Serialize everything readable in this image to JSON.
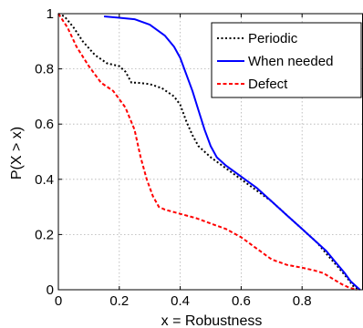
{
  "chart_data": {
    "type": "line",
    "xlabel": "x = Robustness",
    "ylabel": "P(X > x)",
    "xlim": [
      0,
      1
    ],
    "ylim": [
      0,
      1
    ],
    "xticks": [
      0,
      0.2,
      0.4,
      0.6,
      0.8
    ],
    "xtick_labels": [
      "0",
      "0.2",
      "0.4",
      "0.6",
      "0.8"
    ],
    "yticks": [
      0,
      0.2,
      0.4,
      0.6,
      0.8,
      1
    ],
    "ytick_labels": [
      "0",
      "0.2",
      "0.4",
      "0.6",
      "0.8",
      "1"
    ],
    "grid": true,
    "legend_position": "top-right",
    "series": [
      {
        "name": "Periodic",
        "color": "#000000",
        "dash": "dotted",
        "x": [
          0,
          0.02,
          0.05,
          0.08,
          0.12,
          0.16,
          0.2,
          0.22,
          0.24,
          0.26,
          0.3,
          0.34,
          0.38,
          0.4,
          0.42,
          0.44,
          0.46,
          0.48,
          0.5,
          0.55,
          0.6,
          0.65,
          0.7,
          0.75,
          0.8,
          0.85,
          0.88,
          0.92,
          0.95,
          0.97,
          0.99
        ],
        "y": [
          1,
          0.99,
          0.95,
          0.9,
          0.85,
          0.82,
          0.81,
          0.79,
          0.75,
          0.75,
          0.745,
          0.73,
          0.7,
          0.67,
          0.61,
          0.56,
          0.52,
          0.5,
          0.48,
          0.44,
          0.4,
          0.36,
          0.32,
          0.27,
          0.22,
          0.17,
          0.13,
          0.08,
          0.04,
          0.01,
          0
        ]
      },
      {
        "name": "When needed",
        "color": "#0000ff",
        "dash": "solid",
        "x": [
          0.15,
          0.2,
          0.25,
          0.3,
          0.35,
          0.38,
          0.4,
          0.42,
          0.44,
          0.46,
          0.48,
          0.5,
          0.52,
          0.55,
          0.6,
          0.65,
          0.7,
          0.75,
          0.8,
          0.85,
          0.88,
          0.91,
          0.94,
          0.96,
          0.98,
          0.99
        ],
        "y": [
          0.99,
          0.985,
          0.98,
          0.96,
          0.92,
          0.88,
          0.84,
          0.78,
          0.72,
          0.65,
          0.58,
          0.52,
          0.48,
          0.45,
          0.41,
          0.37,
          0.32,
          0.27,
          0.22,
          0.17,
          0.14,
          0.1,
          0.06,
          0.03,
          0.01,
          0
        ]
      },
      {
        "name": "Defect",
        "color": "#ff0000",
        "dash": "dashed",
        "x": [
          0,
          0.03,
          0.06,
          0.1,
          0.14,
          0.18,
          0.22,
          0.25,
          0.27,
          0.29,
          0.31,
          0.33,
          0.35,
          0.4,
          0.45,
          0.5,
          0.55,
          0.6,
          0.65,
          0.7,
          0.75,
          0.8,
          0.84,
          0.87,
          0.9,
          0.93,
          0.95,
          0.97,
          0.98
        ],
        "y": [
          1,
          0.95,
          0.88,
          0.81,
          0.75,
          0.72,
          0.66,
          0.58,
          0.48,
          0.4,
          0.34,
          0.3,
          0.29,
          0.275,
          0.26,
          0.24,
          0.22,
          0.19,
          0.15,
          0.11,
          0.09,
          0.08,
          0.07,
          0.06,
          0.04,
          0.02,
          0.01,
          0.003,
          0
        ]
      }
    ]
  }
}
